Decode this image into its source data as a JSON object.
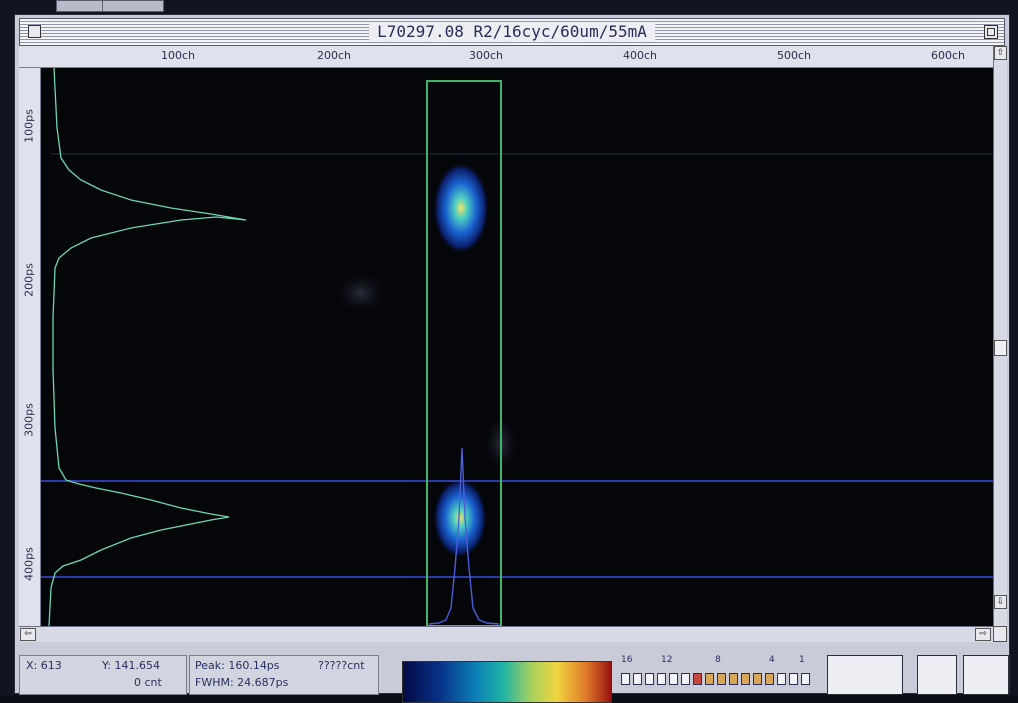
{
  "window": {
    "title": "L70297.08 R2/16cyc/60um/55mA"
  },
  "ruler_x": {
    "ticks": [
      "100ch",
      "200ch",
      "300ch",
      "400ch",
      "500ch",
      "600ch"
    ]
  },
  "ruler_y": {
    "ticks": [
      "100ps",
      "200ps",
      "300ps",
      "400ps"
    ]
  },
  "scrollbars": {
    "up_arrow": "⇧",
    "down_arrow": "⇩",
    "left_arrow": "⇦",
    "right_arrow": "⇨"
  },
  "status": {
    "x_readout": "X: 613",
    "y_readout": "Y: 141.654",
    "count_readout": "0  cnt",
    "peak_readout": "Peak: 160.14ps",
    "fwhm_readout": "FWHM:  24.687ps",
    "cnt_unknown": "?????cnt"
  },
  "level_scale": {
    "labels": [
      "16",
      "12",
      "8",
      "4",
      "1"
    ],
    "segments": 16
  },
  "colors": {
    "roi_box": "#3fb56a",
    "marker_lines": "#2c3aa8",
    "profile_curve": "#6fd6b0",
    "spot_core": "#f4e06a",
    "spot_halo": "#1a4fc0"
  }
}
